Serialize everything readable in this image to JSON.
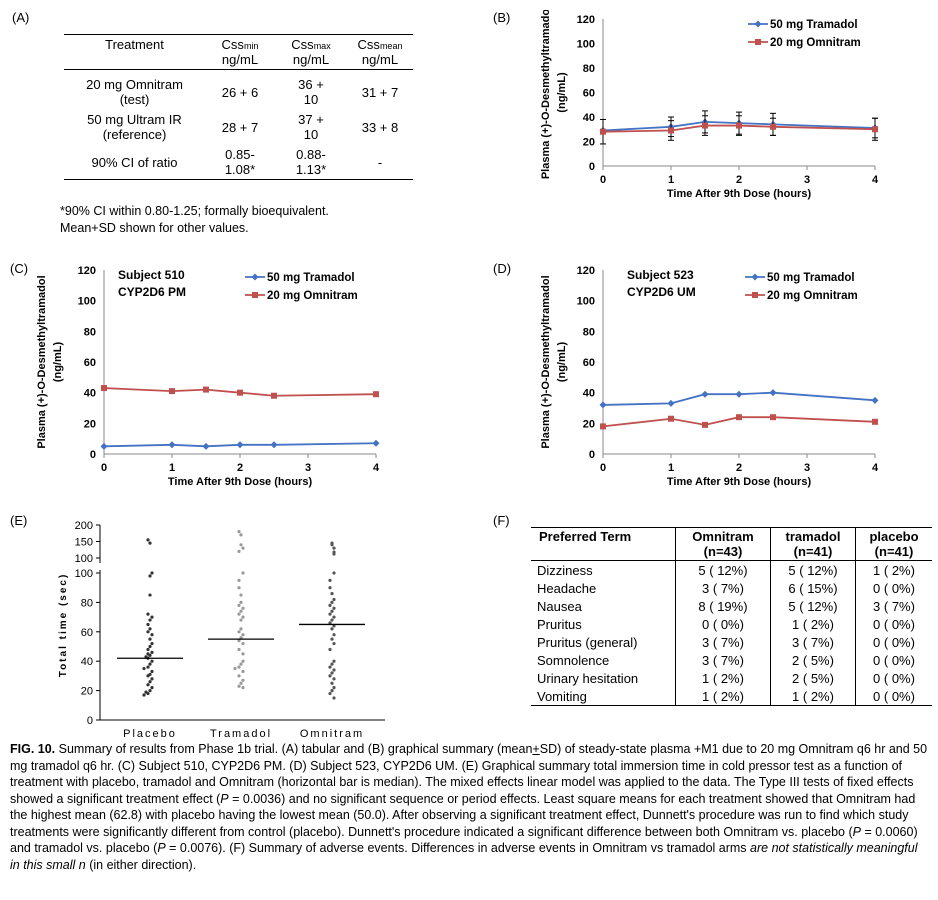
{
  "panel_labels": {
    "a": "(A)",
    "b": "(B)",
    "c": "(C)",
    "d": "(D)",
    "e": "(E)",
    "f": "(F)"
  },
  "table_a": {
    "headers": {
      "treatment": "Treatment",
      "cmin_pre": "Css",
      "cmin_sub": "min",
      "cmax_pre": "Css",
      "cmax_sub": "max",
      "cmean_pre": "Css",
      "cmean_sub": "mean",
      "unit": "ng/mL"
    },
    "rows": [
      {
        "label1": "20 mg Omnitram",
        "label2": "(test)",
        "min": "26 + 6",
        "max1": "36 +",
        "max2": "10",
        "mean": "31 + 7"
      },
      {
        "label1": "50 mg Ultram IR",
        "label2": "(reference)",
        "min": "28 + 7",
        "max1": "37 +",
        "max2": "10",
        "mean": "33 + 8"
      },
      {
        "label1": "90% CI of ratio",
        "label2": "",
        "min1": "0.85-",
        "min2": "1.08*",
        "max1": "0.88-",
        "max2": "1.13*",
        "mean": "-"
      }
    ],
    "footnote1": "*90% CI within 0.80-1.25; formally bioequivalent.",
    "footnote2": "Mean+SD shown for other values."
  },
  "chart_data": [
    {
      "panel": "B",
      "type": "line",
      "title": "",
      "xlabel": "Time After 9th Dose (hours)",
      "ylabel1": "Plasma (+)-O-Desmethyltramadol",
      "ylabel2": "(ng/mL)",
      "xlim": [
        0,
        4
      ],
      "ylim": [
        0,
        120
      ],
      "xticks": [
        0,
        1,
        2,
        3,
        4
      ],
      "yticks": [
        0,
        20,
        40,
        60,
        80,
        100,
        120
      ],
      "series": [
        {
          "name": "50 mg Tramadol",
          "color": "#4472c4",
          "marker": "diamond",
          "x": [
            0,
            1,
            1.5,
            2,
            2.5,
            4
          ],
          "values": [
            29,
            32,
            36,
            35,
            34,
            31
          ],
          "err": [
            0,
            8,
            9,
            9,
            9,
            8
          ]
        },
        {
          "name": "20 mg Omnitram",
          "color": "#c0504d",
          "marker": "square",
          "x": [
            0,
            1,
            1.5,
            2,
            2.5,
            4
          ],
          "values": [
            28,
            29,
            33,
            33,
            32,
            30
          ],
          "err": [
            10,
            8,
            8,
            8,
            7,
            9
          ]
        }
      ]
    },
    {
      "panel": "C",
      "type": "line",
      "annot1": "Subject 510",
      "annot2": "CYP2D6 PM",
      "xlabel": "Time After 9th Dose (hours)",
      "ylabel1": "Plasma (+)-O-Desmethyltramadol",
      "ylabel2": "(ng/mL)",
      "xlim": [
        0,
        4
      ],
      "ylim": [
        0,
        120
      ],
      "xticks": [
        0,
        1,
        2,
        3,
        4
      ],
      "yticks": [
        0,
        20,
        40,
        60,
        80,
        100,
        120
      ],
      "series": [
        {
          "name": "50 mg Tramadol",
          "color": "#4472c4",
          "marker": "diamond",
          "x": [
            0,
            1,
            1.5,
            2,
            2.5,
            4
          ],
          "values": [
            5,
            6,
            5,
            6,
            6,
            7
          ]
        },
        {
          "name": "20 mg Omnitram",
          "color": "#c0504d",
          "marker": "square",
          "x": [
            0,
            1,
            1.5,
            2,
            2.5,
            4
          ],
          "values": [
            43,
            41,
            42,
            40,
            38,
            39
          ]
        }
      ]
    },
    {
      "panel": "D",
      "type": "line",
      "annot1": "Subject 523",
      "annot2": "CYP2D6 UM",
      "xlabel": "Time After 9th Dose (hours)",
      "ylabel1": "Plasma (+)-O-Desmethyltramadol",
      "ylabel2": "(ng/mL)",
      "xlim": [
        0,
        4
      ],
      "ylim": [
        0,
        120
      ],
      "xticks": [
        0,
        1,
        2,
        3,
        4
      ],
      "yticks": [
        0,
        20,
        40,
        60,
        80,
        100,
        120
      ],
      "series": [
        {
          "name": "50 mg Tramadol",
          "color": "#4472c4",
          "marker": "diamond",
          "x": [
            0,
            1,
            1.5,
            2,
            2.5,
            4
          ],
          "values": [
            32,
            33,
            39,
            39,
            40,
            35
          ]
        },
        {
          "name": "20 mg Omnitram",
          "color": "#c0504d",
          "marker": "square",
          "x": [
            0,
            1,
            1.5,
            2,
            2.5,
            4
          ],
          "values": [
            18,
            23,
            19,
            24,
            24,
            21
          ]
        }
      ]
    },
    {
      "panel": "E",
      "type": "scatter",
      "ylabel": "Total time (sec)",
      "categories": [
        "Placebo",
        "Tramadol",
        "Omnitram"
      ],
      "yticks_lower": [
        0,
        20,
        40,
        60,
        80,
        100
      ],
      "yticks_upper": [
        100,
        150,
        200
      ],
      "medians": [
        42,
        55,
        65
      ],
      "points": [
        [
          155,
          145,
          100,
          98,
          85,
          72,
          70,
          68,
          65,
          62,
          60,
          58,
          55,
          52,
          50,
          48,
          46,
          45,
          44,
          43,
          42,
          40,
          38,
          36,
          35,
          33,
          31,
          30,
          28,
          26,
          24,
          22,
          20,
          19,
          18,
          17
        ],
        [
          180,
          170,
          140,
          130,
          120,
          100,
          95,
          90,
          85,
          80,
          78,
          76,
          74,
          72,
          70,
          68,
          62,
          60,
          58,
          56,
          54,
          52,
          48,
          45,
          40,
          38,
          36,
          35,
          33,
          30,
          27,
          25,
          23,
          22
        ],
        [
          145,
          140,
          130,
          118,
          112,
          100,
          95,
          90,
          86,
          82,
          80,
          78,
          76,
          74,
          72,
          70,
          68,
          66,
          64,
          62,
          58,
          55,
          52,
          48,
          40,
          38,
          36,
          34,
          32,
          30,
          28,
          25,
          22,
          20,
          18,
          15
        ]
      ]
    }
  ],
  "table_f": {
    "headers": {
      "term": "Preferred Term",
      "c1a": "Omnitram",
      "c1b": "(n=43)",
      "c2a": "tramadol",
      "c2b": "(n=41)",
      "c3a": "placebo",
      "c3b": "(n=41)"
    },
    "rows": [
      {
        "term": "Dizziness",
        "omni": "5 ( 12%)",
        "tram": "5 ( 12%)",
        "plac": "1 (  2%)"
      },
      {
        "term": "Headache",
        "omni": "3 (  7%)",
        "tram": "6 ( 15%)",
        "plac": "0 (  0%)"
      },
      {
        "term": "Nausea",
        "omni": "8 ( 19%)",
        "tram": "5 ( 12%)",
        "plac": "3 (  7%)"
      },
      {
        "term": "Pruritus",
        "omni": "0 (  0%)",
        "tram": "1 (  2%)",
        "plac": "0 (  0%)"
      },
      {
        "term": "Pruritus (general)",
        "omni": "3 (  7%)",
        "tram": "3 (  7%)",
        "plac": "0 (  0%)"
      },
      {
        "term": "Somnolence",
        "omni": "3 (  7%)",
        "tram": "2 (  5%)",
        "plac": "0 (  0%)"
      },
      {
        "term": "Urinary hesitation",
        "omni": "1 (  2%)",
        "tram": "2 (  5%)",
        "plac": "0 (  0%)"
      },
      {
        "term": "Vomiting",
        "omni": "1 (  2%)",
        "tram": "1 (  2%)",
        "plac": "0 (  0%)"
      }
    ]
  },
  "caption": {
    "fig": "FIG. 10.",
    "t1": " Summary of results from Phase 1b trial.  (A) tabular and (B) graphical summary (mean",
    "pm": "+",
    "t2": "SD) of steady-state plasma +M1 due to 20 mg Omnitram q6 hr and 50 mg tramadol q6 hr.  (C) Subject 510, CYP2D6 PM.  (D) Subject 523, CYP2D6 UM.  (E) Graphical summary total immersion time in cold pressor test as a function of treatment with placebo, tramadol and Omnitram (horizontal bar is median). The mixed effects linear model was applied to the data. The Type III tests of fixed effects showed a significant treatment effect (",
    "p1": "P",
    "t3": " = 0.0036) and no significant sequence or period effects.  Least square means for each treatment showed that Omnitram had the highest mean (62.8) with placebo having the lowest mean (50.0).  After observing a significant treatment effect, Dunnett's procedure was run to find which study treatments were significantly different from control (placebo).  Dunnett's procedure indicated a significant difference between both Omnitram vs. placebo (",
    "p2": "P",
    "t4": " = 0.0060) and tramadol vs. placebo (",
    "p3": "P",
    "t5": " = 0.0076). (F) Summary of adverse events. Differences in adverse events in Omnitram vs tramadol arms ",
    "ital": "are not statistically meaningful in this small n",
    "t6": " (in either direction)."
  }
}
